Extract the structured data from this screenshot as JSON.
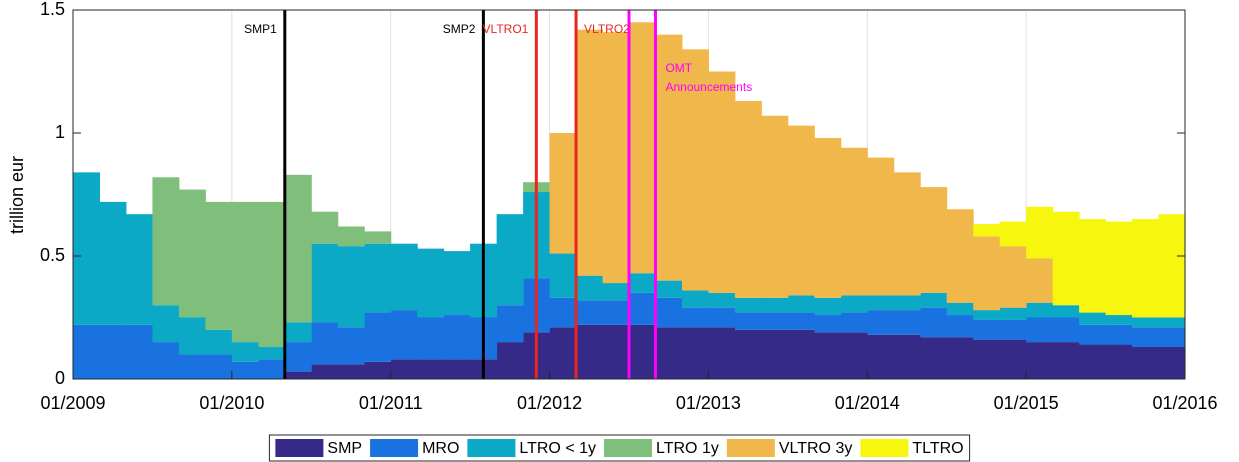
{
  "chart_data": {
    "type": "stacked-area",
    "y_label": "trillion eur",
    "xlim": [
      "2009-01",
      "2016-01"
    ],
    "xticks": [
      {
        "value": "2009-01",
        "label": "01/2009"
      },
      {
        "value": "2010-01",
        "label": "01/2010"
      },
      {
        "value": "2011-01",
        "label": "01/2011"
      },
      {
        "value": "2012-01",
        "label": "01/2012"
      },
      {
        "value": "2013-01",
        "label": "01/2013"
      },
      {
        "value": "2014-01",
        "label": "01/2014"
      },
      {
        "value": "2015-01",
        "label": "01/2015"
      },
      {
        "value": "2016-01",
        "label": "01/2016"
      }
    ],
    "ylim": [
      0,
      1.5
    ],
    "yticks": [
      0,
      0.5,
      1,
      1.5
    ],
    "grid": true,
    "legend": "bottom",
    "x": [
      "2009-01",
      "2009-03",
      "2009-05",
      "2009-07",
      "2009-09",
      "2009-11",
      "2010-01",
      "2010-03",
      "2010-05",
      "2010-07",
      "2010-09",
      "2010-11",
      "2011-01",
      "2011-03",
      "2011-05",
      "2011-07",
      "2011-09",
      "2011-11",
      "2012-01",
      "2012-03",
      "2012-05",
      "2012-07",
      "2012-09",
      "2012-11",
      "2013-01",
      "2013-03",
      "2013-05",
      "2013-07",
      "2013-09",
      "2013-11",
      "2014-01",
      "2014-03",
      "2014-05",
      "2014-07",
      "2014-09",
      "2014-11",
      "2015-01",
      "2015-03",
      "2015-05",
      "2015-07",
      "2015-09",
      "2015-11",
      "2016-01"
    ],
    "series": [
      {
        "name": "SMP",
        "color": "#352a87",
        "values": [
          0,
          0,
          0,
          0,
          0,
          0,
          0,
          0,
          0.03,
          0.06,
          0.06,
          0.07,
          0.08,
          0.08,
          0.08,
          0.08,
          0.15,
          0.19,
          0.21,
          0.22,
          0.22,
          0.22,
          0.21,
          0.21,
          0.21,
          0.2,
          0.2,
          0.2,
          0.19,
          0.19,
          0.18,
          0.18,
          0.17,
          0.17,
          0.16,
          0.16,
          0.15,
          0.15,
          0.14,
          0.14,
          0.13,
          0.13,
          0.12
        ]
      },
      {
        "name": "MRO",
        "color": "#1a72e0",
        "values": [
          0.22,
          0.22,
          0.22,
          0.15,
          0.1,
          0.1,
          0.07,
          0.08,
          0.12,
          0.17,
          0.15,
          0.2,
          0.2,
          0.17,
          0.18,
          0.17,
          0.15,
          0.22,
          0.12,
          0.1,
          0.1,
          0.13,
          0.12,
          0.08,
          0.08,
          0.07,
          0.07,
          0.07,
          0.07,
          0.08,
          0.1,
          0.1,
          0.12,
          0.09,
          0.08,
          0.08,
          0.1,
          0.1,
          0.08,
          0.08,
          0.08,
          0.08,
          0.08
        ]
      },
      {
        "name": "LTRO < 1y",
        "color": "#0ba9c5",
        "values": [
          0.62,
          0.5,
          0.45,
          0.15,
          0.15,
          0.1,
          0.08,
          0.05,
          0.08,
          0.32,
          0.33,
          0.28,
          0.27,
          0.28,
          0.26,
          0.3,
          0.37,
          0.35,
          0.18,
          0.1,
          0.07,
          0.08,
          0.07,
          0.07,
          0.06,
          0.06,
          0.06,
          0.07,
          0.07,
          0.07,
          0.06,
          0.06,
          0.06,
          0.05,
          0.04,
          0.05,
          0.06,
          0.05,
          0.05,
          0.04,
          0.04,
          0.04,
          0.05
        ]
      },
      {
        "name": "LTRO 1y",
        "color": "#7fbf7b",
        "values": [
          0,
          0,
          0,
          0.52,
          0.52,
          0.52,
          0.57,
          0.59,
          0.6,
          0.13,
          0.08,
          0.05,
          0,
          0,
          0,
          0,
          0,
          0.04,
          0,
          0,
          0,
          0,
          0,
          0,
          0,
          0,
          0,
          0,
          0,
          0,
          0,
          0,
          0,
          0,
          0,
          0,
          0,
          0,
          0,
          0,
          0,
          0,
          0
        ]
      },
      {
        "name": "VLTRO 3y",
        "color": "#f0b74a",
        "values": [
          0,
          0,
          0,
          0,
          0,
          0,
          0,
          0,
          0,
          0,
          0,
          0,
          0,
          0,
          0,
          0,
          0,
          0,
          0.49,
          1.0,
          1.02,
          1.02,
          1.0,
          0.98,
          0.9,
          0.8,
          0.74,
          0.69,
          0.65,
          0.6,
          0.56,
          0.5,
          0.43,
          0.38,
          0.3,
          0.25,
          0.18,
          0,
          0,
          0,
          0,
          0,
          0
        ]
      },
      {
        "name": "TLTRO",
        "color": "#f6f60e",
        "values": [
          0,
          0,
          0,
          0,
          0,
          0,
          0,
          0,
          0,
          0,
          0,
          0,
          0,
          0,
          0,
          0,
          0,
          0,
          0,
          0,
          0,
          0,
          0,
          0,
          0,
          0,
          0,
          0,
          0,
          0,
          0,
          0,
          0,
          0,
          0.05,
          0.1,
          0.21,
          0.38,
          0.38,
          0.38,
          0.4,
          0.42,
          0.43
        ]
      }
    ],
    "events": [
      {
        "x": "2010-05",
        "label": "SMP1",
        "color": "#000000",
        "label_side": "left"
      },
      {
        "x": "2011-08",
        "label": "SMP2",
        "color": "#000000",
        "label_side": "left"
      },
      {
        "x": "2011-12",
        "label": "VLTRO1",
        "color": "#e8261f",
        "label_side": "left"
      },
      {
        "x": "2012-03",
        "label": "VLTRO2",
        "color": "#e8261f",
        "label_side": "right"
      },
      {
        "x": "2012-07",
        "label": null,
        "color": "#ff00ff",
        "label_side": "right"
      },
      {
        "x": "2012-09",
        "label": "OMT Announcements",
        "color": "#ff00ff",
        "label_side": "right"
      }
    ]
  }
}
